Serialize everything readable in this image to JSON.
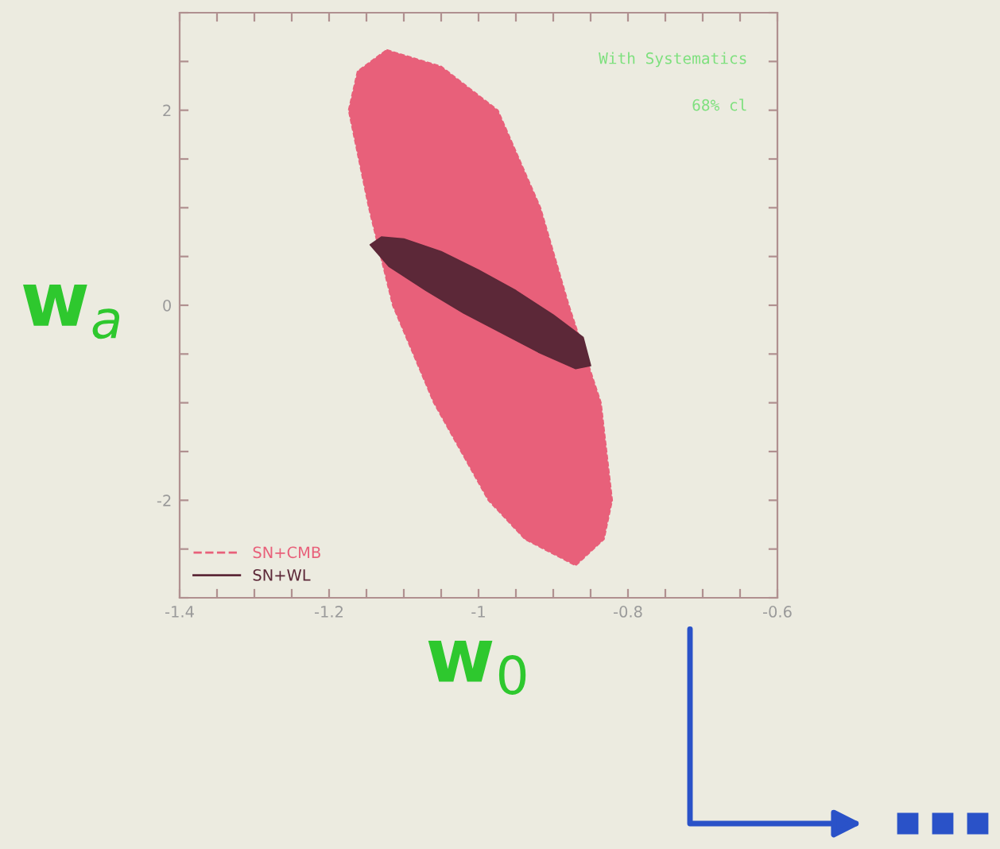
{
  "chart_data": {
    "type": "area",
    "xlabel": "w$_{0}$",
    "ylabel": "w$_{a}$",
    "annotations": [
      "With Systematics",
      "68% cl"
    ],
    "xlim": [
      -1.4,
      -0.6
    ],
    "ylim": [
      -3,
      3
    ],
    "xticks": [
      -1.4,
      {
        "value": -1.35,
        "label": null
      },
      {
        "value": -1.3,
        "label": null
      },
      {
        "value": -1.25,
        "label": null
      },
      -1.2,
      {
        "value": -1.15,
        "label": null
      },
      {
        "value": -1.1,
        "label": null
      },
      {
        "value": -1.05,
        "label": null
      },
      -1,
      {
        "value": -0.95,
        "label": null
      },
      {
        "value": -0.9,
        "label": null
      },
      {
        "value": -0.85,
        "label": null
      },
      -0.8,
      {
        "value": -0.75,
        "label": null
      },
      {
        "value": -0.7,
        "label": null
      },
      {
        "value": -0.65,
        "label": null
      },
      -0.6
    ],
    "yticks": [
      {
        "value": -3,
        "label": null
      },
      {
        "value": -2.5,
        "label": null
      },
      -2,
      {
        "value": -1.5,
        "label": null
      },
      {
        "value": -1,
        "label": null
      },
      {
        "value": -0.5,
        "label": null
      },
      0,
      {
        "value": 0.5,
        "label": null
      },
      {
        "value": 1,
        "label": null
      },
      {
        "value": 1.5,
        "label": null
      },
      2,
      {
        "value": 2.5,
        "label": null
      },
      {
        "value": 3,
        "label": null
      }
    ],
    "legend": "bottom left",
    "grid": false,
    "series": [
      {
        "name": "SN+CMB",
        "color": "#e8607a",
        "line_style": "dashed",
        "x": [
          -1.123,
          -1.05,
          -0.974,
          -0.917,
          -0.879,
          -0.836,
          -0.821,
          -0.832,
          -0.87,
          -0.938,
          -0.987,
          -1.06,
          -1.115,
          -1.147,
          -1.174,
          -1.162,
          -1.123
        ],
        "values": [
          2.62,
          2.45,
          2,
          1,
          0,
          -1,
          -2,
          -2.4,
          -2.67,
          -2.4,
          -2,
          -1,
          0,
          1,
          2,
          2.4,
          2.62
        ]
      },
      {
        "name": "SN+WL",
        "color": "#5c2838",
        "line_style": "solid",
        "x": [
          -1.145,
          -1.13,
          -1.1,
          -1.05,
          -1.0,
          -0.95,
          -0.9,
          -0.86,
          -0.85,
          -0.87,
          -0.92,
          -0.97,
          -1.02,
          -1.07,
          -1.12,
          -1.145
        ],
        "values": [
          0.62,
          0.7,
          0.68,
          0.55,
          0.36,
          0.15,
          -0.1,
          -0.33,
          -0.62,
          -0.65,
          -0.48,
          -0.28,
          -0.08,
          0.15,
          0.4,
          0.62
        ]
      }
    ]
  }
}
